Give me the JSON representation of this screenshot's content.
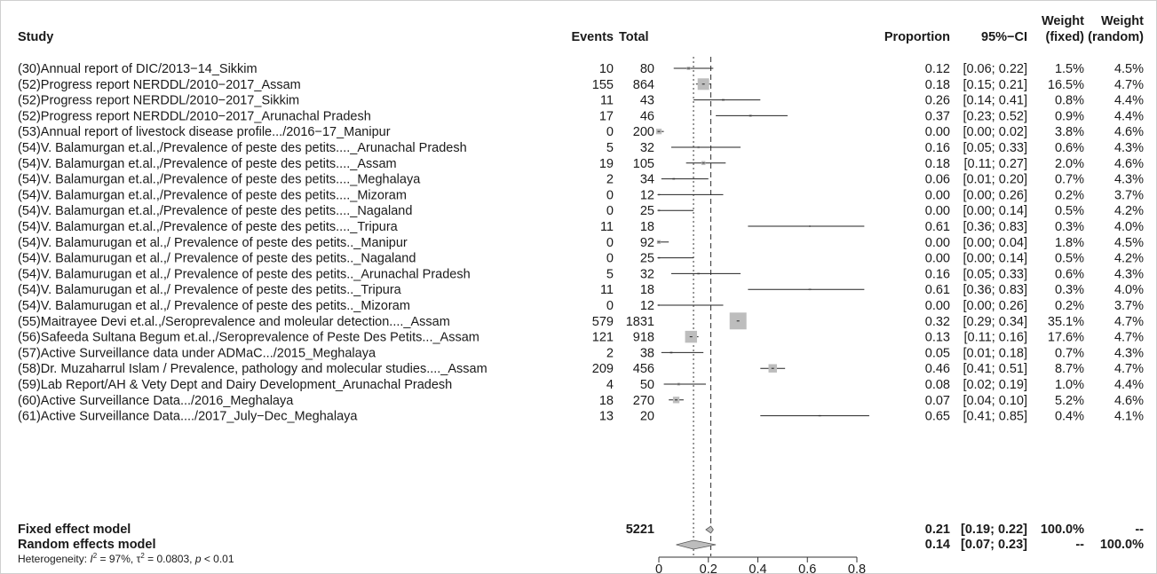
{
  "headers": {
    "study": "Study",
    "events": "Events",
    "total": "Total",
    "proportion": "Proportion",
    "ci": "95%−CI",
    "weight_line1": "Weight",
    "weight_fixed": "(fixed)",
    "weight_random": "(random)"
  },
  "rows": [
    {
      "study": "(30)Annual report of DIC/2013−14_Sikkim",
      "events": "10",
      "total": "80",
      "prop": "0.12",
      "ci": "[0.06; 0.22]",
      "wf": "1.5%",
      "wr": "4.5%"
    },
    {
      "study": "(52)Progress report NERDDL/2010−2017_Assam",
      "events": "155",
      "total": "864",
      "prop": "0.18",
      "ci": "[0.15; 0.21]",
      "wf": "16.5%",
      "wr": "4.7%"
    },
    {
      "study": "(52)Progress report NERDDL/2010−2017_Sikkim",
      "events": "11",
      "total": "43",
      "prop": "0.26",
      "ci": "[0.14; 0.41]",
      "wf": "0.8%",
      "wr": "4.4%"
    },
    {
      "study": "(52)Progress report NERDDL/2010−2017_Arunachal Pradesh",
      "events": "17",
      "total": "46",
      "prop": "0.37",
      "ci": "[0.23; 0.52]",
      "wf": "0.9%",
      "wr": "4.4%"
    },
    {
      "study": "(53)Annual report of livestock disease profile.../2016−17_Manipur",
      "events": "0",
      "total": "200",
      "prop": "0.00",
      "ci": "[0.00; 0.02]",
      "wf": "3.8%",
      "wr": "4.6%"
    },
    {
      "study": "(54)V. Balamurgan et.al.,/Prevalence of peste des petits...._Arunachal Pradesh",
      "events": "5",
      "total": "32",
      "prop": "0.16",
      "ci": "[0.05; 0.33]",
      "wf": "0.6%",
      "wr": "4.3%"
    },
    {
      "study": "(54)V. Balamurgan et.al.,/Prevalence of peste des petits...._Assam",
      "events": "19",
      "total": "105",
      "prop": "0.18",
      "ci": "[0.11; 0.27]",
      "wf": "2.0%",
      "wr": "4.6%"
    },
    {
      "study": "(54)V. Balamurgan et.al.,/Prevalence of peste des petits...._Meghalaya",
      "events": "2",
      "total": "34",
      "prop": "0.06",
      "ci": "[0.01; 0.20]",
      "wf": "0.7%",
      "wr": "4.3%"
    },
    {
      "study": "(54)V. Balamurgan et.al.,/Prevalence of peste des petits...._Mizoram",
      "events": "0",
      "total": "12",
      "prop": "0.00",
      "ci": "[0.00; 0.26]",
      "wf": "0.2%",
      "wr": "3.7%"
    },
    {
      "study": "(54)V. Balamurgan et.al.,/Prevalence of peste des petits...._Nagaland",
      "events": "0",
      "total": "25",
      "prop": "0.00",
      "ci": "[0.00; 0.14]",
      "wf": "0.5%",
      "wr": "4.2%"
    },
    {
      "study": "(54)V. Balamurgan et.al.,/Prevalence of peste des petits...._Tripura",
      "events": "11",
      "total": "18",
      "prop": "0.61",
      "ci": "[0.36; 0.83]",
      "wf": "0.3%",
      "wr": "4.0%"
    },
    {
      "study": "(54)V. Balamurugan et al.,/ Prevalence of peste des petits.._Manipur",
      "events": "0",
      "total": "92",
      "prop": "0.00",
      "ci": "[0.00; 0.04]",
      "wf": "1.8%",
      "wr": "4.5%"
    },
    {
      "study": "(54)V. Balamurugan et al.,/ Prevalence of peste des petits.._Nagaland",
      "events": "0",
      "total": "25",
      "prop": "0.00",
      "ci": "[0.00; 0.14]",
      "wf": "0.5%",
      "wr": "4.2%"
    },
    {
      "study": "(54)V. Balamurugan et al.,/ Prevalence of peste des petits.._Arunachal Pradesh",
      "events": "5",
      "total": "32",
      "prop": "0.16",
      "ci": "[0.05; 0.33]",
      "wf": "0.6%",
      "wr": "4.3%"
    },
    {
      "study": "(54)V. Balamurugan et al.,/ Prevalence of peste des petits.._Tripura",
      "events": "11",
      "total": "18",
      "prop": "0.61",
      "ci": "[0.36; 0.83]",
      "wf": "0.3%",
      "wr": "4.0%"
    },
    {
      "study": "(54)V. Balamurugan et al.,/ Prevalence of peste des petits.._Mizoram",
      "events": "0",
      "total": "12",
      "prop": "0.00",
      "ci": "[0.00; 0.26]",
      "wf": "0.2%",
      "wr": "3.7%"
    },
    {
      "study": "(55)Maitrayee Devi et.al.,/Seroprevalence and moleular detection...._Assam",
      "events": "579",
      "total": "1831",
      "prop": "0.32",
      "ci": "[0.29; 0.34]",
      "wf": "35.1%",
      "wr": "4.7%"
    },
    {
      "study": "(56)Safeeda Sultana Begum et.al.,/Seroprevalence of Peste Des Petits..._Assam",
      "events": "121",
      "total": "918",
      "prop": "0.13",
      "ci": "[0.11; 0.16]",
      "wf": "17.6%",
      "wr": "4.7%"
    },
    {
      "study": "(57)Active Surveillance data under ADMaC.../2015_Meghalaya",
      "events": "2",
      "total": "38",
      "prop": "0.05",
      "ci": "[0.01; 0.18]",
      "wf": "0.7%",
      "wr": "4.3%"
    },
    {
      "study": "(58)Dr. Muzaharrul Islam / Prevalence, pathology and molecular studies...._Assam",
      "events": "209",
      "total": "456",
      "prop": "0.46",
      "ci": "[0.41; 0.51]",
      "wf": "8.7%",
      "wr": "4.7%"
    },
    {
      "study": "(59)Lab Report/AH & Vety Dept and Dairy Development_Arunachal Pradesh",
      "events": "4",
      "total": "50",
      "prop": "0.08",
      "ci": "[0.02; 0.19]",
      "wf": "1.0%",
      "wr": "4.4%"
    },
    {
      "study": "(60)Active Surveillance Data.../2016_Meghalaya",
      "events": "18",
      "total": "270",
      "prop": "0.07",
      "ci": "[0.04; 0.10]",
      "wf": "5.2%",
      "wr": "4.6%"
    },
    {
      "study": "(61)Active Surveillance Data..../2017_July−Dec_Meghalaya",
      "events": "13",
      "total": "20",
      "prop": "0.65",
      "ci": "[0.41; 0.85]",
      "wf": "0.4%",
      "wr": "4.1%"
    }
  ],
  "summary": {
    "fixed": {
      "label": "Fixed effect model",
      "total": "5221",
      "prop": "0.21",
      "ci": "[0.19; 0.22]",
      "wf": "100.0%",
      "wr": "--"
    },
    "random": {
      "label": "Random effects model",
      "prop": "0.14",
      "ci": "[0.07; 0.23]",
      "wf": "--",
      "wr": "100.0%"
    },
    "heterogeneity": {
      "prefix": "Heterogeneity: ",
      "i2_sym": "I",
      "i2_exp": "2",
      "i2_val": " = 97%, ",
      "tau_sym": "τ",
      "tau_exp": "2",
      "tau_val": " = 0.0803, ",
      "p_sym": "p",
      "p_val": " < 0.01"
    }
  },
  "chart_data": {
    "type": "forest",
    "x_axis": {
      "min": 0,
      "max": 0.8,
      "ticks": [
        0,
        0.2,
        0.4,
        0.6,
        0.8
      ],
      "tick_labels": [
        "0",
        "0.2",
        "0.4",
        "0.6",
        "0.8"
      ]
    },
    "points": [
      {
        "est": 0.12,
        "lo": 0.06,
        "hi": 0.22,
        "w": 1.5
      },
      {
        "est": 0.18,
        "lo": 0.15,
        "hi": 0.21,
        "w": 16.5
      },
      {
        "est": 0.26,
        "lo": 0.14,
        "hi": 0.41,
        "w": 0.8
      },
      {
        "est": 0.37,
        "lo": 0.23,
        "hi": 0.52,
        "w": 0.9
      },
      {
        "est": 0.0,
        "lo": 0.0,
        "hi": 0.02,
        "w": 3.8
      },
      {
        "est": 0.16,
        "lo": 0.05,
        "hi": 0.33,
        "w": 0.6
      },
      {
        "est": 0.18,
        "lo": 0.11,
        "hi": 0.27,
        "w": 2.0
      },
      {
        "est": 0.06,
        "lo": 0.01,
        "hi": 0.2,
        "w": 0.7
      },
      {
        "est": 0.0,
        "lo": 0.0,
        "hi": 0.26,
        "w": 0.2
      },
      {
        "est": 0.0,
        "lo": 0.0,
        "hi": 0.14,
        "w": 0.5
      },
      {
        "est": 0.61,
        "lo": 0.36,
        "hi": 0.83,
        "w": 0.3
      },
      {
        "est": 0.0,
        "lo": 0.0,
        "hi": 0.04,
        "w": 1.8
      },
      {
        "est": 0.0,
        "lo": 0.0,
        "hi": 0.14,
        "w": 0.5
      },
      {
        "est": 0.16,
        "lo": 0.05,
        "hi": 0.33,
        "w": 0.6
      },
      {
        "est": 0.61,
        "lo": 0.36,
        "hi": 0.83,
        "w": 0.3
      },
      {
        "est": 0.0,
        "lo": 0.0,
        "hi": 0.26,
        "w": 0.2
      },
      {
        "est": 0.32,
        "lo": 0.29,
        "hi": 0.34,
        "w": 35.1
      },
      {
        "est": 0.13,
        "lo": 0.11,
        "hi": 0.16,
        "w": 17.6
      },
      {
        "est": 0.05,
        "lo": 0.01,
        "hi": 0.18,
        "w": 0.7
      },
      {
        "est": 0.46,
        "lo": 0.41,
        "hi": 0.51,
        "w": 8.7
      },
      {
        "est": 0.08,
        "lo": 0.02,
        "hi": 0.19,
        "w": 1.0
      },
      {
        "est": 0.07,
        "lo": 0.04,
        "hi": 0.1,
        "w": 5.2
      },
      {
        "est": 0.65,
        "lo": 0.41,
        "hi": 0.85,
        "w": 0.4
      }
    ],
    "fixed": {
      "est": 0.21,
      "lo": 0.19,
      "hi": 0.22
    },
    "random": {
      "est": 0.14,
      "lo": 0.07,
      "hi": 0.23
    },
    "colors": {
      "box": "#bdbdbd",
      "line": "#222222",
      "diamond": "#bdbdbd"
    }
  }
}
